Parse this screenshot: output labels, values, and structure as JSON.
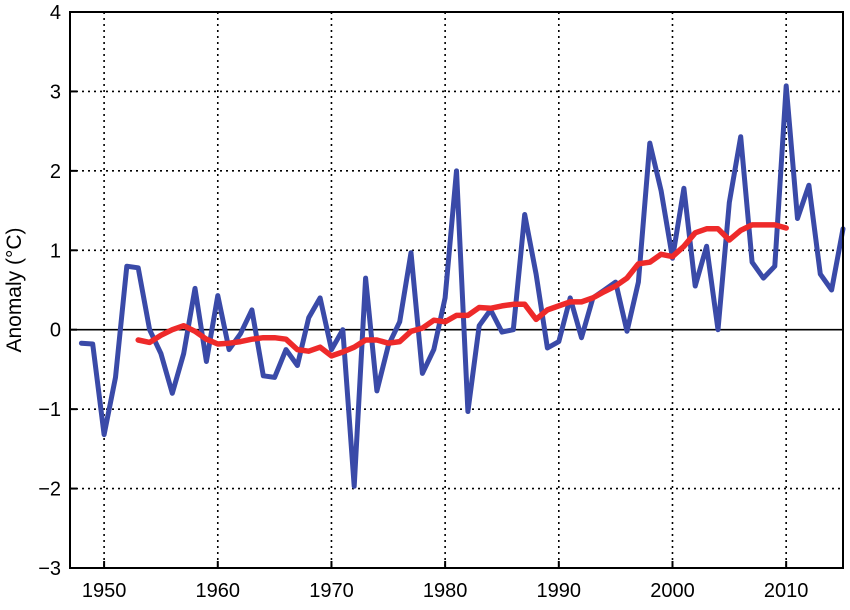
{
  "chart_data": {
    "type": "line",
    "title": "",
    "xlabel": "",
    "ylabel": "Anomaly (°C)",
    "xlim": [
      1947,
      2015
    ],
    "ylim": [
      -3,
      4
    ],
    "xticks": [
      1950,
      1960,
      1970,
      1980,
      1990,
      2000,
      2010
    ],
    "yticks": [
      -3,
      -2,
      -1,
      0,
      1,
      2,
      3,
      4
    ],
    "grid": "dotted",
    "zero_line": true,
    "legend": "none",
    "colors": {
      "annual": "#3a4aa8",
      "smoothed": "#ee2a2a"
    },
    "series": [
      {
        "x": [
          1948,
          1949,
          1950,
          1951,
          1952,
          1953,
          1954,
          1955,
          1956,
          1957,
          1958,
          1959,
          1960,
          1961,
          1962,
          1963,
          1964,
          1965,
          1966,
          1967,
          1968,
          1969,
          1970,
          1971,
          1972,
          1973,
          1974,
          1975,
          1976,
          1977,
          1978,
          1979,
          1980,
          1981,
          1982,
          1983,
          1984,
          1985,
          1986,
          1987,
          1988,
          1989,
          1990,
          1991,
          1992,
          1993,
          1994,
          1995,
          1996,
          1997,
          1998,
          1999,
          2000,
          2001,
          2002,
          2003,
          2004,
          2005,
          2006,
          2007,
          2008,
          2009,
          2010,
          2011,
          2012,
          2013,
          2014,
          2015
        ],
        "y": [
          -0.17,
          -0.18,
          -1.32,
          -0.6,
          0.8,
          0.78,
          0.0,
          -0.3,
          -0.8,
          -0.3,
          0.52,
          -0.4,
          0.43,
          -0.25,
          -0.05,
          0.25,
          -0.58,
          -0.6,
          -0.25,
          -0.45,
          0.15,
          0.4,
          -0.25,
          0.0,
          -1.97,
          0.65,
          -0.77,
          -0.2,
          0.1,
          0.97,
          -0.55,
          -0.25,
          0.4,
          2.0,
          -1.03,
          0.05,
          0.25,
          -0.03,
          0.0,
          1.45,
          0.7,
          -0.23,
          -0.15,
          0.4,
          -0.1,
          0.4,
          0.5,
          0.6,
          -0.02,
          0.6,
          2.35,
          1.75,
          0.9,
          1.78,
          0.55,
          1.05,
          0.0,
          1.6,
          2.43,
          0.85,
          0.65,
          0.8,
          3.07,
          1.4,
          1.82,
          0.7,
          0.5,
          1.27
        ]
      },
      {
        "x": [
          1953,
          1954,
          1955,
          1956,
          1957,
          1958,
          1959,
          1960,
          1961,
          1962,
          1963,
          1964,
          1965,
          1966,
          1967,
          1968,
          1969,
          1970,
          1971,
          1972,
          1973,
          1974,
          1975,
          1976,
          1977,
          1978,
          1979,
          1980,
          1981,
          1982,
          1983,
          1984,
          1985,
          1986,
          1987,
          1988,
          1989,
          1990,
          1991,
          1992,
          1993,
          1994,
          1995,
          1996,
          1997,
          1998,
          1999,
          2000,
          2001,
          2002,
          2003,
          2004,
          2005,
          2006,
          2007,
          2008,
          2009,
          2010
        ],
        "y": [
          -0.13,
          -0.16,
          -0.07,
          0.0,
          0.05,
          -0.02,
          -0.12,
          -0.18,
          -0.17,
          -0.15,
          -0.12,
          -0.1,
          -0.1,
          -0.12,
          -0.25,
          -0.27,
          -0.22,
          -0.33,
          -0.28,
          -0.22,
          -0.13,
          -0.13,
          -0.17,
          -0.15,
          -0.02,
          0.02,
          0.12,
          0.1,
          0.18,
          0.18,
          0.28,
          0.27,
          0.3,
          0.32,
          0.32,
          0.13,
          0.25,
          0.3,
          0.35,
          0.35,
          0.4,
          0.48,
          0.55,
          0.65,
          0.83,
          0.85,
          0.95,
          0.92,
          1.05,
          1.22,
          1.27,
          1.27,
          1.13,
          1.25,
          1.32,
          1.32,
          1.32,
          1.28
        ]
      }
    ]
  }
}
